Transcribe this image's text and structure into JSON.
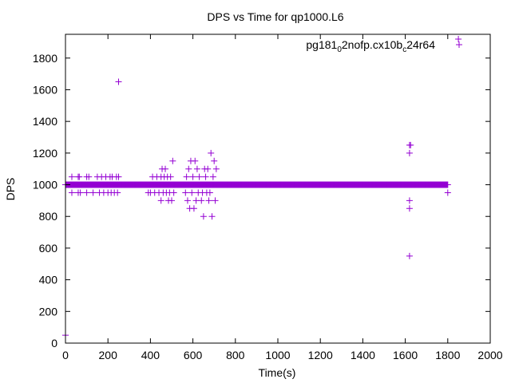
{
  "chart_data": {
    "type": "scatter",
    "title": "DPS vs Time for qp1000.L6",
    "xlabel": "Time(s)",
    "ylabel": "DPS",
    "xlim": [
      0,
      2000
    ],
    "ylim": [
      0,
      1950
    ],
    "xticks": [
      0,
      200,
      400,
      600,
      800,
      1000,
      1200,
      1400,
      1600,
      1800,
      2000
    ],
    "yticks": [
      0,
      200,
      400,
      600,
      800,
      1000,
      1200,
      1400,
      1600,
      1800
    ],
    "grid": false,
    "legend_position": "top-right",
    "marker": "plus",
    "series": [
      {
        "name_parts": [
          "pg181",
          "0",
          "2nofp.cx10b",
          "c",
          "24r64"
        ],
        "color": "#9400d3",
        "baseline": {
          "y": 1000,
          "x_from": 0,
          "x_to": 1800,
          "step": 2
        },
        "points": [
          [
            0,
            50
          ],
          [
            250,
            1650
          ],
          [
            1620,
            550
          ],
          [
            1850,
            1920
          ],
          [
            1800,
            950
          ],
          [
            30,
            950
          ],
          [
            30,
            1050
          ],
          [
            60,
            950
          ],
          [
            60,
            1050
          ],
          [
            65,
            1050
          ],
          [
            70,
            950
          ],
          [
            100,
            950
          ],
          [
            100,
            1050
          ],
          [
            110,
            1050
          ],
          [
            130,
            950
          ],
          [
            150,
            1050
          ],
          [
            160,
            950
          ],
          [
            170,
            1050
          ],
          [
            180,
            950
          ],
          [
            190,
            1050
          ],
          [
            200,
            950
          ],
          [
            210,
            1050
          ],
          [
            215,
            950
          ],
          [
            220,
            1050
          ],
          [
            230,
            950
          ],
          [
            240,
            1050
          ],
          [
            245,
            950
          ],
          [
            250,
            1050
          ],
          [
            390,
            950
          ],
          [
            400,
            950
          ],
          [
            410,
            1050
          ],
          [
            420,
            950
          ],
          [
            430,
            1050
          ],
          [
            440,
            950
          ],
          [
            450,
            900
          ],
          [
            450,
            1050
          ],
          [
            455,
            1100
          ],
          [
            460,
            950
          ],
          [
            465,
            1050
          ],
          [
            470,
            1100
          ],
          [
            475,
            950
          ],
          [
            480,
            1050
          ],
          [
            485,
            900
          ],
          [
            490,
            950
          ],
          [
            495,
            1050
          ],
          [
            500,
            900
          ],
          [
            505,
            1150
          ],
          [
            510,
            950
          ],
          [
            565,
            950
          ],
          [
            570,
            1050
          ],
          [
            575,
            900
          ],
          [
            580,
            1100
          ],
          [
            585,
            850
          ],
          [
            590,
            1150
          ],
          [
            595,
            950
          ],
          [
            600,
            1050
          ],
          [
            605,
            850
          ],
          [
            610,
            1150
          ],
          [
            615,
            900
          ],
          [
            620,
            1100
          ],
          [
            625,
            950
          ],
          [
            630,
            1050
          ],
          [
            640,
            900
          ],
          [
            645,
            950
          ],
          [
            650,
            800
          ],
          [
            655,
            1100
          ],
          [
            660,
            1050
          ],
          [
            665,
            950
          ],
          [
            670,
            1100
          ],
          [
            675,
            900
          ],
          [
            680,
            950
          ],
          [
            685,
            1200
          ],
          [
            690,
            800
          ],
          [
            695,
            1050
          ],
          [
            700,
            1150
          ],
          [
            705,
            900
          ],
          [
            710,
            1100
          ],
          [
            1620,
            850
          ],
          [
            1620,
            900
          ],
          [
            1620,
            1200
          ],
          [
            1620,
            1250
          ],
          [
            1625,
            1250
          ]
        ]
      }
    ]
  }
}
